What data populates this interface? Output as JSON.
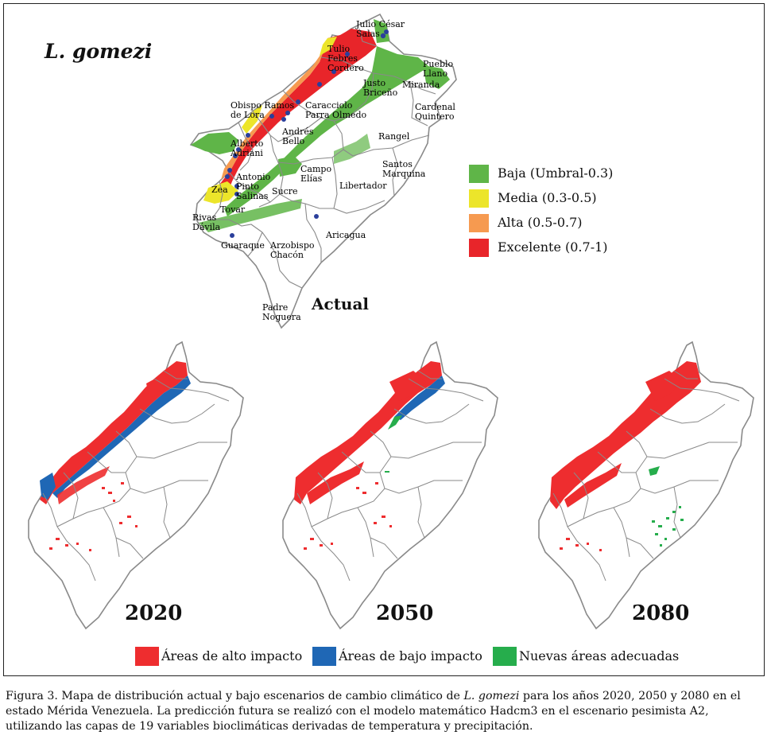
{
  "title_species": "L. gomezi",
  "actual_label": "Actual",
  "years": [
    "2020",
    "2050",
    "2080"
  ],
  "municipalities": [
    "Julio César Salas",
    "Tulio Febres Cordero",
    "Pueblo Llano",
    "Justo Briceño",
    "Miranda",
    "Obispo Ramos de Lora",
    "Caracciolo Parra Olmedo",
    "Cardenal Quintero",
    "Andrés Bello",
    "Rangel",
    "Alberto Adriani",
    "Santos Marquina",
    "Campo Elías",
    "Antonio Pinto Salinas",
    "Zea",
    "Sucre",
    "Libertador",
    "Tovar",
    "Rivas Dávila",
    "Aricagua",
    "Guaraque",
    "Arzobispo Chacón",
    "Padre Noguera"
  ],
  "legend_top": [
    {
      "label": "Baja  (Umbral-0.3)",
      "color": "#5fb548"
    },
    {
      "label": "Media  (0.3-0.5)",
      "color": "#ece52a"
    },
    {
      "label": "Alta  (0.5-0.7)",
      "color": "#f69a50"
    },
    {
      "label": "Excelente  (0.7-1)",
      "color": "#e8252a"
    }
  ],
  "legend_bottom": [
    {
      "label": "Áreas de alto impacto",
      "color": "#ee2d2f"
    },
    {
      "label": "Áreas de bajo impacto",
      "color": "#1f67b5"
    },
    {
      "label": "Nuevas  áreas adecuadas",
      "color": "#26ad4c"
    }
  ],
  "caption": {
    "p1": "Figura 3. Mapa de distribución actual y bajo escenarios de cambio climático de ",
    "species": "L. gomezi",
    "p2": " para los años 2020, 2050 y 2080 en el estado Mérida Venezuela. La predicción futura se realizó con el modelo matemático Hadcm3 en el escenario pesimista A2, utilizando las capas de 19 variables bioclimáticas derivadas de temperatura y precipitación."
  }
}
